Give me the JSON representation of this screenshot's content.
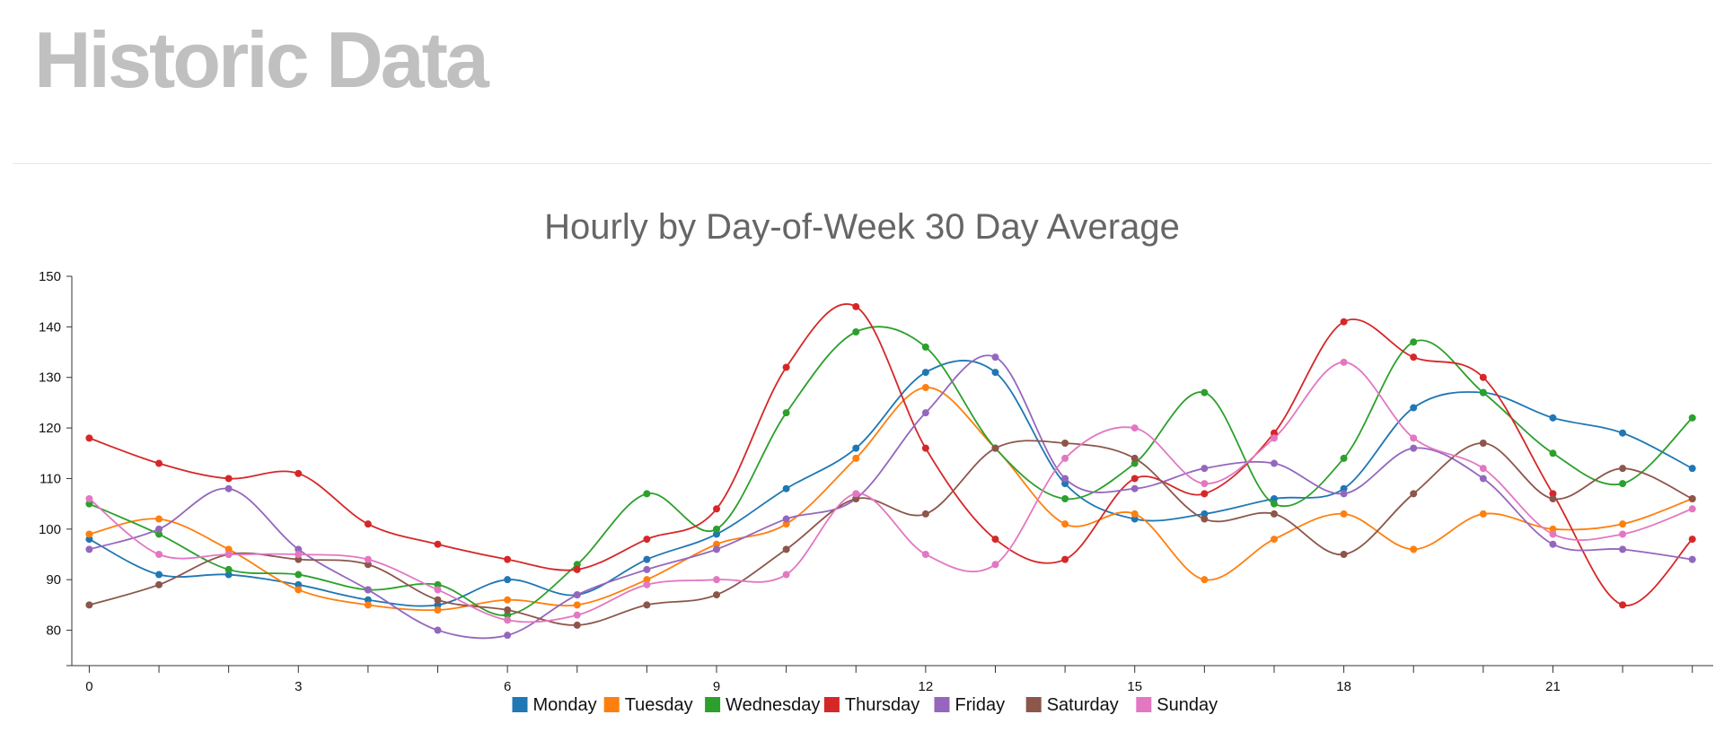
{
  "page": {
    "title": "Historic Data"
  },
  "chart_data": {
    "type": "line",
    "title": "Hourly by Day-of-Week 30 Day Average",
    "xlabel": "",
    "ylabel": "",
    "x": [
      0,
      1,
      2,
      3,
      4,
      5,
      6,
      7,
      8,
      9,
      10,
      11,
      12,
      13,
      14,
      15,
      16,
      17,
      18,
      19,
      20,
      21,
      22,
      23
    ],
    "x_tick_labels": {
      "0": "0",
      "3": "3",
      "6": "6",
      "9": "9",
      "12": "12",
      "15": "15",
      "18": "18",
      "21": "21"
    },
    "y_ticks": [
      80,
      90,
      100,
      110,
      120,
      130,
      140,
      150
    ],
    "ylim": [
      73,
      150
    ],
    "xlim": [
      -0.25,
      23.3
    ],
    "grid": false,
    "legend_position": "bottom-center",
    "series": [
      {
        "name": "Monday",
        "color": "#1f77b4",
        "values": [
          98,
          91,
          91,
          89,
          86,
          85,
          90,
          87,
          94,
          99,
          108,
          116,
          131,
          131,
          109,
          102,
          103,
          106,
          108,
          124,
          127,
          122,
          119,
          112
        ]
      },
      {
        "name": "Tuesday",
        "color": "#ff7f0e",
        "values": [
          99,
          102,
          96,
          88,
          85,
          84,
          86,
          85,
          90,
          97,
          101,
          114,
          128,
          116,
          101,
          103,
          90,
          98,
          103,
          96,
          103,
          100,
          101,
          106
        ]
      },
      {
        "name": "Wednesday",
        "color": "#2ca02c",
        "values": [
          105,
          99,
          92,
          91,
          88,
          89,
          83,
          93,
          107,
          100,
          123,
          139,
          136,
          116,
          106,
          113,
          127,
          105,
          114,
          137,
          127,
          115,
          109,
          122
        ]
      },
      {
        "name": "Thursday",
        "color": "#d62728",
        "values": [
          118,
          113,
          110,
          111,
          101,
          97,
          94,
          92,
          98,
          104,
          132,
          144,
          116,
          98,
          94,
          110,
          107,
          119,
          141,
          134,
          130,
          107,
          85,
          98
        ]
      },
      {
        "name": "Friday",
        "color": "#9467bd",
        "values": [
          96,
          100,
          108,
          96,
          88,
          80,
          79,
          87,
          92,
          96,
          102,
          106,
          123,
          134,
          110,
          108,
          112,
          113,
          107,
          116,
          110,
          97,
          96,
          94
        ]
      },
      {
        "name": "Saturday",
        "color": "#8c564b",
        "values": [
          85,
          89,
          95,
          94,
          93,
          86,
          84,
          81,
          85,
          87,
          96,
          106,
          103,
          116,
          117,
          114,
          102,
          103,
          95,
          107,
          117,
          106,
          112,
          106
        ]
      },
      {
        "name": "Sunday",
        "color": "#e377c2",
        "values": [
          106,
          95,
          95,
          95,
          94,
          88,
          82,
          83,
          89,
          90,
          91,
          107,
          95,
          93,
          114,
          120,
          109,
          118,
          133,
          118,
          112,
          99,
          99,
          104
        ]
      }
    ]
  }
}
